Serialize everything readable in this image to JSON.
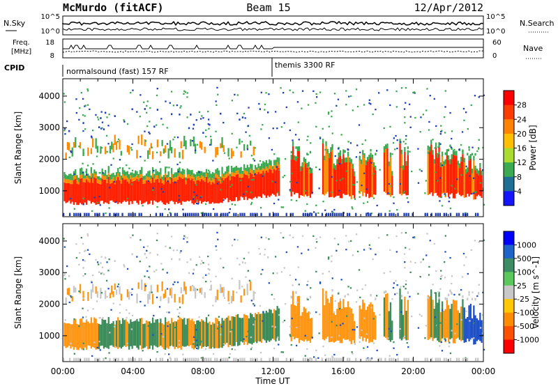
{
  "header": {
    "station": "McMurdo (fitACF)",
    "beam": "Beam 15",
    "date": "12/Apr/2012"
  },
  "status_panels": {
    "nsky_label": "N.Sky",
    "nsearch_label": "N.Search",
    "freq_label_line1": "Freq.",
    "freq_label_line2": "[MHz]",
    "nave_label": "Nave",
    "cpid_label": "CPID",
    "left_ticks_top": [
      "10^5",
      "10^0"
    ],
    "right_ticks_top": [
      "10^5",
      "10^0"
    ],
    "left_ticks_freq": [
      "18",
      "8"
    ],
    "right_ticks_nave": [
      "60",
      "0"
    ],
    "cpid_segments": [
      {
        "text": "normalsound (fast) 157 RF",
        "start_hour": 0
      },
      {
        "text": "themis 3300 RF",
        "start_hour": 12
      }
    ]
  },
  "chart_data": [
    {
      "type": "heatmap",
      "name": "power",
      "ylabel": "Slant Range [km]",
      "ylim": [
        180,
        4550
      ],
      "xlim_hours": [
        0,
        24
      ],
      "yticks": [
        "1000",
        "2000",
        "3000",
        "4000"
      ],
      "colorbar": {
        "label": "Power [dB]",
        "ticks": [
          "28",
          "24",
          "20",
          "16",
          "12",
          "8",
          "4"
        ],
        "colors": [
          "#ff0000",
          "#ff3c00",
          "#ff8200",
          "#ffbe00",
          "#aadc30",
          "#3caa50",
          "#1e6e96",
          "#1414ff"
        ]
      }
    },
    {
      "type": "heatmap",
      "name": "velocity",
      "ylabel": "Slant Range [km]",
      "ylim": [
        180,
        4550
      ],
      "xlim_hours": [
        0,
        24
      ],
      "yticks": [
        "1000",
        "2000",
        "3000",
        "4000"
      ],
      "colorbar": {
        "label": "Velocity [m s^-1]",
        "ticks": [
          "1000",
          "500",
          "100",
          "25",
          "-25",
          "-100",
          "-500",
          "-1000"
        ],
        "colors": [
          "#0000ff",
          "#1e64c8",
          "#3c8c64",
          "#5ac85a",
          "#c8c8c8",
          "#ffc800",
          "#ff8c00",
          "#ff5000",
          "#ff0000"
        ]
      }
    }
  ],
  "x_axis": {
    "label": "Time UT",
    "ticks": [
      "00:00",
      "04:00",
      "08:00",
      "12:00",
      "16:00",
      "20:00",
      "00:00"
    ]
  },
  "colors": {
    "power_core": "#ff2000",
    "power_mid": "#ff8c00",
    "power_weak": "#3caa50",
    "power_noise": "#1e3cb4",
    "vel_green": "#3c8c5a",
    "vel_orange": "#ff9614",
    "vel_gray": "#c8c8c8",
    "vel_blue": "#1e50c8"
  }
}
